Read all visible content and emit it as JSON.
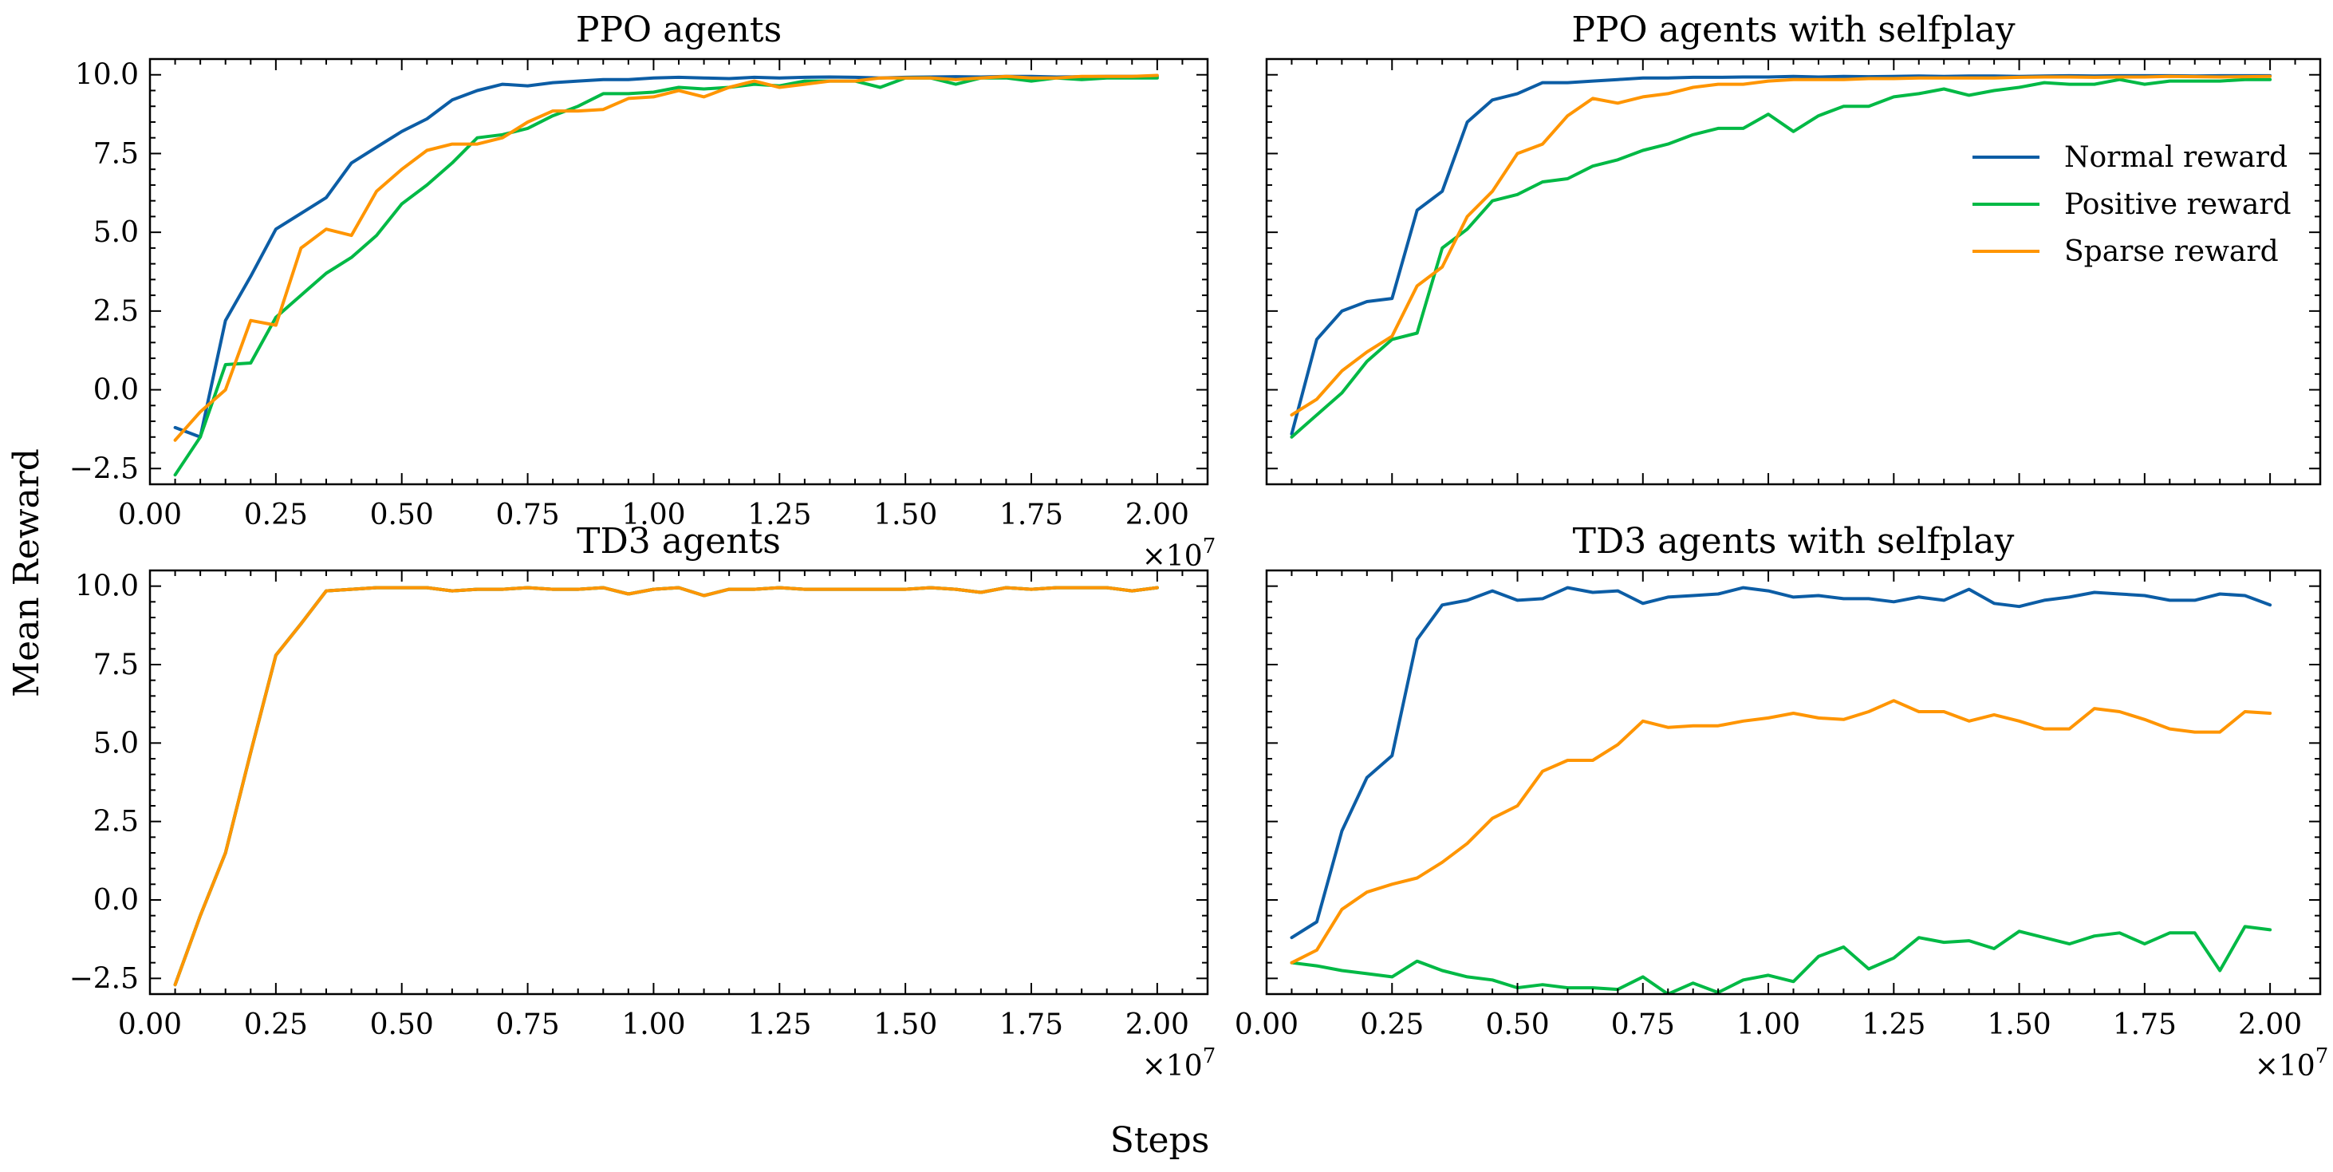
{
  "figure": {
    "xlabel": "Steps",
    "ylabel": "Mean Reward",
    "x_offset_label": "×10",
    "x_offset_exponent": "7"
  },
  "colors": {
    "Normal reward": "#0c5da5",
    "Positive reward": "#00b945",
    "Sparse reward": "#ff9500"
  },
  "legend": {
    "placement": "upper-right of top-right panel",
    "entries": [
      "Normal reward",
      "Positive reward",
      "Sparse reward"
    ]
  },
  "chart_data": [
    {
      "type": "line",
      "title": "PPO agents",
      "xlim": [
        0,
        2.1
      ],
      "ylim": [
        -3,
        10.5
      ],
      "x_ticks": [
        "0.00",
        "0.25",
        "0.50",
        "0.75",
        "1.00",
        "1.25",
        "1.50",
        "1.75",
        "2.00"
      ],
      "y_ticks": [
        "−2.5",
        "0.0",
        "2.5",
        "5.0",
        "7.5",
        "10.0"
      ],
      "x": [
        0.05,
        0.1,
        0.15,
        0.2,
        0.25,
        0.3,
        0.35,
        0.4,
        0.45,
        0.5,
        0.55,
        0.6,
        0.65,
        0.7,
        0.75,
        0.8,
        0.85,
        0.9,
        0.95,
        1.0,
        1.05,
        1.1,
        1.15,
        1.2,
        1.25,
        1.3,
        1.35,
        1.4,
        1.45,
        1.5,
        1.55,
        1.6,
        1.65,
        1.7,
        1.75,
        1.8,
        1.85,
        1.9,
        1.95,
        2.0
      ],
      "series": [
        {
          "name": "Normal reward",
          "values": [
            -1.2,
            -1.5,
            2.2,
            3.6,
            5.1,
            5.6,
            6.1,
            7.2,
            7.7,
            8.2,
            8.6,
            9.2,
            9.5,
            9.7,
            9.65,
            9.75,
            9.8,
            9.85,
            9.85,
            9.9,
            9.92,
            9.9,
            9.88,
            9.92,
            9.9,
            9.92,
            9.93,
            9.92,
            9.9,
            9.92,
            9.93,
            9.94,
            9.93,
            9.95,
            9.95,
            9.93,
            9.94,
            9.95,
            9.95,
            9.95
          ]
        },
        {
          "name": "Positive reward",
          "values": [
            -2.7,
            -1.5,
            0.8,
            0.85,
            2.3,
            3.0,
            3.7,
            4.2,
            4.9,
            5.9,
            6.5,
            7.2,
            8.0,
            8.1,
            8.3,
            8.7,
            9.0,
            9.4,
            9.4,
            9.45,
            9.6,
            9.55,
            9.6,
            9.7,
            9.65,
            9.8,
            9.8,
            9.8,
            9.6,
            9.9,
            9.9,
            9.7,
            9.9,
            9.9,
            9.8,
            9.9,
            9.85,
            9.9,
            9.9,
            9.9
          ]
        },
        {
          "name": "Sparse reward",
          "values": [
            -1.6,
            -0.7,
            0.0,
            2.2,
            2.05,
            4.5,
            5.1,
            4.9,
            6.3,
            7.0,
            7.6,
            7.8,
            7.8,
            8.0,
            8.5,
            8.85,
            8.85,
            8.9,
            9.25,
            9.3,
            9.5,
            9.3,
            9.6,
            9.8,
            9.6,
            9.7,
            9.8,
            9.8,
            9.9,
            9.9,
            9.9,
            9.85,
            9.9,
            9.95,
            9.9,
            9.9,
            9.95,
            9.95,
            9.95,
            9.98
          ]
        }
      ]
    },
    {
      "type": "line",
      "title": "PPO agents with selfplay",
      "xlim": [
        0,
        2.1
      ],
      "ylim": [
        -3,
        10.5
      ],
      "x_ticks": [],
      "y_ticks": [],
      "x": [
        0.05,
        0.1,
        0.15,
        0.2,
        0.25,
        0.3,
        0.35,
        0.4,
        0.45,
        0.5,
        0.55,
        0.6,
        0.65,
        0.7,
        0.75,
        0.8,
        0.85,
        0.9,
        0.95,
        1.0,
        1.05,
        1.1,
        1.15,
        1.2,
        1.25,
        1.3,
        1.35,
        1.4,
        1.45,
        1.5,
        1.55,
        1.6,
        1.65,
        1.7,
        1.75,
        1.8,
        1.85,
        1.9,
        1.95,
        2.0
      ],
      "series": [
        {
          "name": "Normal reward",
          "values": [
            -1.4,
            1.6,
            2.5,
            2.8,
            2.9,
            5.7,
            6.3,
            8.5,
            9.2,
            9.4,
            9.75,
            9.75,
            9.8,
            9.85,
            9.9,
            9.9,
            9.92,
            9.92,
            9.93,
            9.93,
            9.95,
            9.93,
            9.95,
            9.94,
            9.95,
            9.96,
            9.95,
            9.96,
            9.96,
            9.95,
            9.96,
            9.97,
            9.96,
            9.97,
            9.97,
            9.97,
            9.96,
            9.97,
            9.97,
            9.97
          ]
        },
        {
          "name": "Positive reward",
          "values": [
            -1.5,
            -0.8,
            -0.1,
            0.9,
            1.6,
            1.8,
            4.5,
            5.1,
            6.0,
            6.2,
            6.6,
            6.7,
            7.1,
            7.3,
            7.6,
            7.8,
            8.1,
            8.3,
            8.3,
            8.75,
            8.2,
            8.7,
            9.0,
            9.0,
            9.3,
            9.4,
            9.55,
            9.35,
            9.5,
            9.6,
            9.75,
            9.7,
            9.7,
            9.85,
            9.7,
            9.8,
            9.8,
            9.8,
            9.85,
            9.85
          ]
        },
        {
          "name": "Sparse reward",
          "values": [
            -0.8,
            -0.3,
            0.6,
            1.2,
            1.7,
            3.3,
            3.9,
            5.5,
            6.3,
            7.5,
            7.8,
            8.7,
            9.25,
            9.1,
            9.3,
            9.4,
            9.6,
            9.7,
            9.7,
            9.8,
            9.85,
            9.85,
            9.85,
            9.88,
            9.88,
            9.9,
            9.9,
            9.9,
            9.9,
            9.92,
            9.93,
            9.93,
            9.92,
            9.93,
            9.93,
            9.95,
            9.94,
            9.93,
            9.94,
            9.95
          ]
        }
      ]
    },
    {
      "type": "line",
      "title": "TD3 agents",
      "xlim": [
        0,
        2.1
      ],
      "ylim": [
        -3,
        10.5
      ],
      "x_ticks": [
        "0.00",
        "0.25",
        "0.50",
        "0.75",
        "1.00",
        "1.25",
        "1.50",
        "1.75",
        "2.00"
      ],
      "y_ticks": [
        "−2.5",
        "0.0",
        "2.5",
        "5.0",
        "7.5",
        "10.0"
      ],
      "x": [
        0.05,
        0.1,
        0.15,
        0.2,
        0.25,
        0.3,
        0.35,
        0.4,
        0.45,
        0.5,
        0.55,
        0.6,
        0.65,
        0.7,
        0.75,
        0.8,
        0.85,
        0.9,
        0.95,
        1.0,
        1.05,
        1.1,
        1.15,
        1.2,
        1.25,
        1.3,
        1.35,
        1.4,
        1.45,
        1.5,
        1.55,
        1.6,
        1.65,
        1.7,
        1.75,
        1.8,
        1.85,
        1.9,
        1.95,
        2.0
      ],
      "series": [
        {
          "name": "Normal reward",
          "values": [
            -2.7,
            -0.5,
            1.5,
            4.7,
            7.8,
            8.8,
            9.85,
            9.9,
            9.95,
            9.95,
            9.95,
            9.85,
            9.9,
            9.9,
            9.95,
            9.9,
            9.9,
            9.95,
            9.75,
            9.9,
            9.95,
            9.7,
            9.9,
            9.9,
            9.95,
            9.9,
            9.9,
            9.9,
            9.9,
            9.9,
            9.95,
            9.9,
            9.8,
            9.95,
            9.9,
            9.95,
            9.95,
            9.95,
            9.85,
            9.95
          ]
        },
        {
          "name": "Positive reward",
          "values": [
            -2.7,
            -0.5,
            1.5,
            4.7,
            7.8,
            8.8,
            9.85,
            9.9,
            9.95,
            9.95,
            9.95,
            9.85,
            9.9,
            9.9,
            9.95,
            9.9,
            9.9,
            9.95,
            9.75,
            9.9,
            9.95,
            9.7,
            9.9,
            9.9,
            9.95,
            9.9,
            9.9,
            9.9,
            9.9,
            9.9,
            9.95,
            9.9,
            9.8,
            9.95,
            9.9,
            9.95,
            9.95,
            9.95,
            9.85,
            9.95
          ]
        },
        {
          "name": "Sparse reward",
          "values": [
            -2.7,
            -0.5,
            1.5,
            4.7,
            7.8,
            8.8,
            9.85,
            9.9,
            9.95,
            9.95,
            9.95,
            9.85,
            9.9,
            9.9,
            9.95,
            9.9,
            9.9,
            9.95,
            9.75,
            9.9,
            9.95,
            9.7,
            9.9,
            9.9,
            9.95,
            9.9,
            9.9,
            9.9,
            9.9,
            9.9,
            9.95,
            9.9,
            9.8,
            9.95,
            9.9,
            9.95,
            9.95,
            9.95,
            9.85,
            9.95
          ]
        }
      ]
    },
    {
      "type": "line",
      "title": "TD3 agents with selfplay",
      "xlim": [
        0,
        2.1
      ],
      "ylim": [
        -3,
        10.5
      ],
      "x_ticks": [
        "0.00",
        "0.25",
        "0.50",
        "0.75",
        "1.00",
        "1.25",
        "1.50",
        "1.75",
        "2.00"
      ],
      "y_ticks": [],
      "x": [
        0.05,
        0.1,
        0.15,
        0.2,
        0.25,
        0.3,
        0.35,
        0.4,
        0.45,
        0.5,
        0.55,
        0.6,
        0.65,
        0.7,
        0.75,
        0.8,
        0.85,
        0.9,
        0.95,
        1.0,
        1.05,
        1.1,
        1.15,
        1.2,
        1.25,
        1.3,
        1.35,
        1.4,
        1.45,
        1.5,
        1.55,
        1.6,
        1.65,
        1.7,
        1.75,
        1.8,
        1.85,
        1.9,
        1.95,
        2.0
      ],
      "series": [
        {
          "name": "Normal reward",
          "values": [
            -1.2,
            -0.7,
            2.2,
            3.9,
            4.6,
            8.3,
            9.4,
            9.55,
            9.85,
            9.55,
            9.6,
            9.95,
            9.8,
            9.85,
            9.45,
            9.65,
            9.7,
            9.75,
            9.95,
            9.85,
            9.65,
            9.7,
            9.6,
            9.6,
            9.5,
            9.65,
            9.55,
            9.9,
            9.45,
            9.35,
            9.55,
            9.65,
            9.8,
            9.75,
            9.7,
            9.55,
            9.55,
            9.75,
            9.7,
            9.4
          ]
        },
        {
          "name": "Positive reward",
          "values": [
            -2.0,
            -2.1,
            -2.25,
            -2.35,
            -2.45,
            -1.95,
            -2.25,
            -2.45,
            -2.55,
            -2.8,
            -2.7,
            -2.8,
            -2.8,
            -2.85,
            -2.45,
            -3.0,
            -2.65,
            -2.95,
            -2.55,
            -2.4,
            -2.6,
            -1.8,
            -1.5,
            -2.2,
            -1.85,
            -1.2,
            -1.35,
            -1.3,
            -1.55,
            -1.0,
            -1.2,
            -1.4,
            -1.15,
            -1.05,
            -1.4,
            -1.05,
            -1.05,
            -2.25,
            -0.85,
            -0.95
          ]
        },
        {
          "name": "Sparse reward",
          "values": [
            -2.0,
            -1.6,
            -0.3,
            0.25,
            0.5,
            0.7,
            1.2,
            1.8,
            2.6,
            3.0,
            4.1,
            4.45,
            4.45,
            4.95,
            5.7,
            5.5,
            5.55,
            5.55,
            5.7,
            5.8,
            5.95,
            5.8,
            5.75,
            6.0,
            6.35,
            6.0,
            6.0,
            5.7,
            5.9,
            5.7,
            5.45,
            5.45,
            6.1,
            6.0,
            5.75,
            5.45,
            5.35,
            5.35,
            6.0,
            5.95
          ]
        }
      ]
    }
  ]
}
